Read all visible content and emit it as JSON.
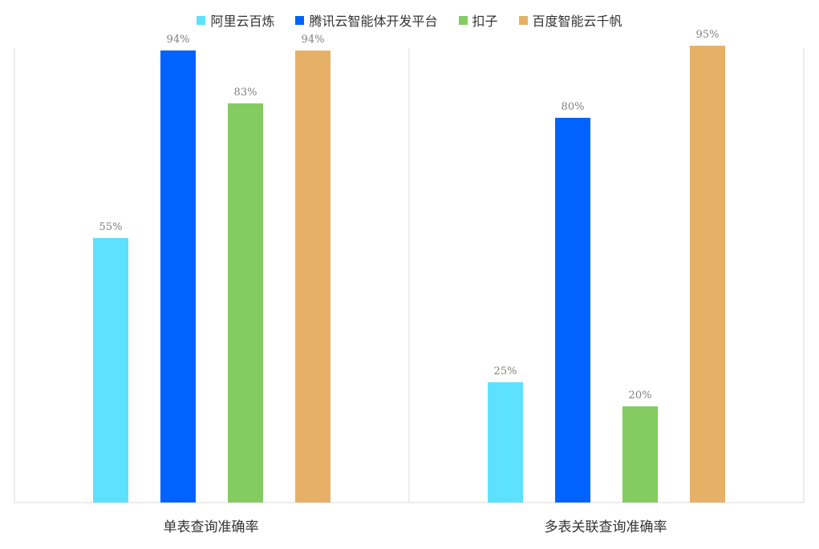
{
  "chart_data": {
    "type": "bar",
    "categories": [
      "单表查询准确率",
      "多表关联查询准确率"
    ],
    "series": [
      {
        "name": "阿里云百炼",
        "values": [
          55,
          25
        ],
        "color": "#5ce1ff"
      },
      {
        "name": "腾讯云智能体开发平台",
        "values": [
          94,
          80
        ],
        "color": "#0062ff"
      },
      {
        "name": "扣子",
        "values": [
          83,
          20
        ],
        "color": "#84cc62"
      },
      {
        "name": "百度智能云千帆",
        "values": [
          94,
          95
        ],
        "color": "#e6b167"
      }
    ],
    "value_suffix": "%",
    "ylim": [
      0,
      100
    ],
    "legend_position": "top",
    "grid": false
  }
}
